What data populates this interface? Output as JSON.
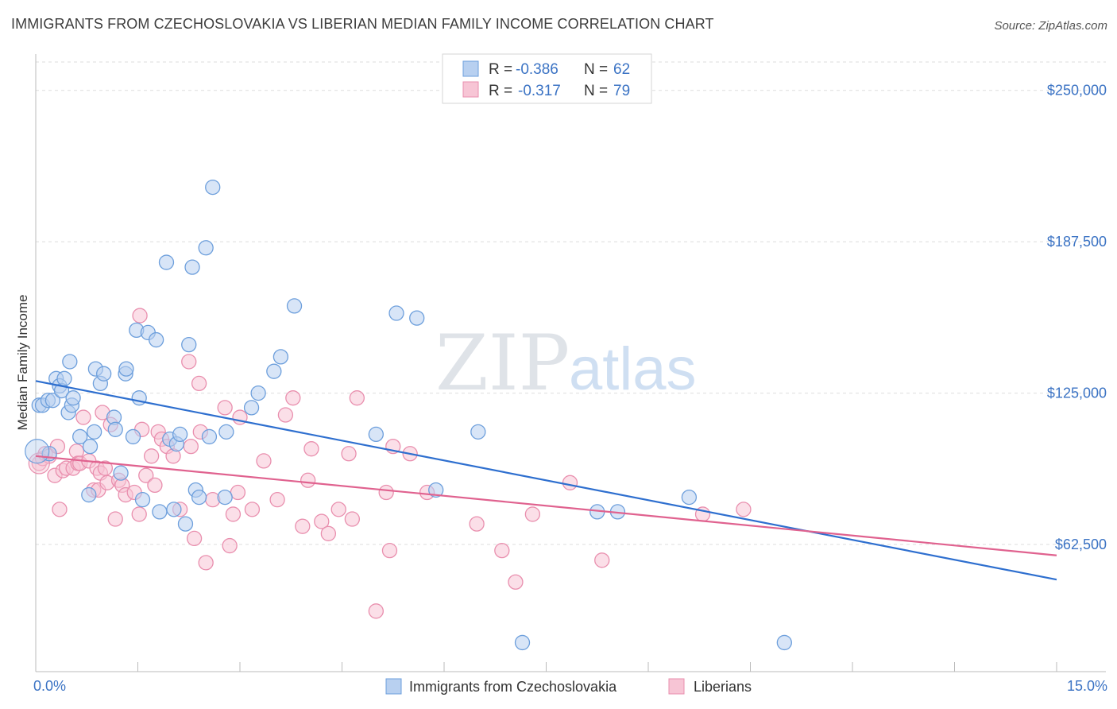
{
  "title": "IMMIGRANTS FROM CZECHOSLOVAKIA VS LIBERIAN MEDIAN FAMILY INCOME CORRELATION CHART",
  "source": "Source: ZipAtlas.com",
  "watermark": {
    "zip": "ZIP",
    "atlas": "atlas"
  },
  "colors": {
    "blue_fill": "#b8d0f0",
    "blue_stroke": "#6d9fdc",
    "blue_line": "#2e6fcf",
    "pink_fill": "#f7c5d5",
    "pink_stroke": "#e98fae",
    "pink_line": "#e0628f",
    "axis_text": "#3b73c4",
    "grid": "#dddddd"
  },
  "legend_top": [
    {
      "r_label": "R =",
      "r_value": "-0.386",
      "n_label": "N =",
      "n_value": "62"
    },
    {
      "r_label": "R =",
      "r_value": "-0.317",
      "n_label": "N =",
      "n_value": "79"
    }
  ],
  "chart_data": {
    "type": "scatter",
    "title": "IMMIGRANTS FROM CZECHOSLOVAKIA VS LIBERIAN MEDIAN FAMILY INCOME CORRELATION CHART",
    "xlabel": "",
    "ylabel": "Median Family Income",
    "xlim": [
      0,
      15
    ],
    "ylim": [
      10000,
      265000
    ],
    "x_tick_labels": [
      "0.0%",
      "15.0%"
    ],
    "y_ticks": [
      62500,
      125000,
      187500,
      250000
    ],
    "y_tick_labels": [
      "$62,500",
      "$125,000",
      "$187,500",
      "$250,000"
    ],
    "grid": true,
    "series": [
      {
        "name": "Immigrants from Czechoslovakia",
        "color": "#6d9fdc",
        "R": -0.386,
        "N": 62,
        "trend": {
          "x": [
            0,
            15
          ],
          "y": [
            130000,
            48000
          ]
        },
        "points": [
          [
            0.05,
            120000
          ],
          [
            0.1,
            120000
          ],
          [
            0.18,
            122000
          ],
          [
            0.25,
            122000
          ],
          [
            0.3,
            131000
          ],
          [
            0.35,
            128000
          ],
          [
            0.38,
            126000
          ],
          [
            0.42,
            131000
          ],
          [
            0.48,
            117000
          ],
          [
            0.53,
            120000
          ],
          [
            0.55,
            123000
          ],
          [
            0.5,
            138000
          ],
          [
            0.65,
            107000
          ],
          [
            0.8,
            103000
          ],
          [
            0.86,
            109000
          ],
          [
            0.88,
            135000
          ],
          [
            0.95,
            129000
          ],
          [
            1.0,
            133000
          ],
          [
            0.78,
            83000
          ],
          [
            1.15,
            115000
          ],
          [
            1.17,
            110000
          ],
          [
            1.25,
            92000
          ],
          [
            1.32,
            133000
          ],
          [
            1.33,
            135000
          ],
          [
            1.43,
            107000
          ],
          [
            1.48,
            151000
          ],
          [
            1.52,
            123000
          ],
          [
            1.57,
            81000
          ],
          [
            1.65,
            150000
          ],
          [
            1.77,
            147000
          ],
          [
            1.82,
            76000
          ],
          [
            1.92,
            179000
          ],
          [
            1.97,
            106000
          ],
          [
            2.03,
            77000
          ],
          [
            2.07,
            104000
          ],
          [
            2.12,
            108000
          ],
          [
            2.2,
            71000
          ],
          [
            2.25,
            145000
          ],
          [
            2.3,
            177000
          ],
          [
            2.35,
            85000
          ],
          [
            2.4,
            82000
          ],
          [
            2.5,
            185000
          ],
          [
            2.55,
            107000
          ],
          [
            2.6,
            210000
          ],
          [
            2.78,
            82000
          ],
          [
            2.8,
            109000
          ],
          [
            3.17,
            119000
          ],
          [
            3.27,
            125000
          ],
          [
            3.5,
            134000
          ],
          [
            3.6,
            140000
          ],
          [
            3.8,
            161000
          ],
          [
            5.0,
            108000
          ],
          [
            5.3,
            158000
          ],
          [
            5.6,
            156000
          ],
          [
            5.88,
            85000
          ],
          [
            6.5,
            109000
          ],
          [
            7.15,
            22000
          ],
          [
            8.25,
            76000
          ],
          [
            8.55,
            76000
          ],
          [
            9.6,
            82000
          ],
          [
            11.0,
            22000
          ],
          [
            0.2,
            100000
          ]
        ]
      },
      {
        "name": "Liberians",
        "color": "#e98fae",
        "R": -0.317,
        "N": 79,
        "trend": {
          "x": [
            0,
            15
          ],
          "y": [
            99000,
            58000
          ]
        },
        "points": [
          [
            0.05,
            96000
          ],
          [
            0.1,
            98000
          ],
          [
            0.14,
            100000
          ],
          [
            0.2,
            99000
          ],
          [
            0.28,
            91000
          ],
          [
            0.32,
            103000
          ],
          [
            0.35,
            77000
          ],
          [
            0.4,
            93000
          ],
          [
            0.45,
            94000
          ],
          [
            0.55,
            94000
          ],
          [
            0.6,
            101000
          ],
          [
            0.62,
            96000
          ],
          [
            0.65,
            96000
          ],
          [
            0.7,
            115000
          ],
          [
            0.78,
            97000
          ],
          [
            0.85,
            85000
          ],
          [
            0.9,
            94000
          ],
          [
            0.92,
            85000
          ],
          [
            0.95,
            92000
          ],
          [
            0.98,
            117000
          ],
          [
            1.02,
            94000
          ],
          [
            1.05,
            88000
          ],
          [
            1.1,
            112000
          ],
          [
            1.17,
            73000
          ],
          [
            1.22,
            89000
          ],
          [
            1.27,
            87000
          ],
          [
            1.32,
            83000
          ],
          [
            1.45,
            84000
          ],
          [
            1.52,
            75000
          ],
          [
            1.53,
            157000
          ],
          [
            1.56,
            110000
          ],
          [
            1.62,
            91000
          ],
          [
            1.7,
            99000
          ],
          [
            1.75,
            87000
          ],
          [
            1.8,
            109000
          ],
          [
            1.85,
            106000
          ],
          [
            1.93,
            103000
          ],
          [
            2.02,
            99000
          ],
          [
            2.12,
            77000
          ],
          [
            2.25,
            138000
          ],
          [
            2.28,
            103000
          ],
          [
            2.33,
            65000
          ],
          [
            2.4,
            129000
          ],
          [
            2.42,
            109000
          ],
          [
            2.5,
            55000
          ],
          [
            2.6,
            81000
          ],
          [
            2.78,
            119000
          ],
          [
            2.85,
            62000
          ],
          [
            2.9,
            75000
          ],
          [
            2.97,
            84000
          ],
          [
            3.0,
            115000
          ],
          [
            3.18,
            77000
          ],
          [
            3.35,
            97000
          ],
          [
            3.55,
            81000
          ],
          [
            3.67,
            116000
          ],
          [
            3.78,
            123000
          ],
          [
            3.92,
            70000
          ],
          [
            4.0,
            89000
          ],
          [
            4.05,
            102000
          ],
          [
            4.2,
            72000
          ],
          [
            4.3,
            67000
          ],
          [
            4.45,
            77000
          ],
          [
            4.6,
            100000
          ],
          [
            4.65,
            73000
          ],
          [
            4.72,
            123000
          ],
          [
            5.0,
            35000
          ],
          [
            5.15,
            84000
          ],
          [
            5.2,
            60000
          ],
          [
            5.25,
            103000
          ],
          [
            5.5,
            100000
          ],
          [
            5.75,
            84000
          ],
          [
            6.48,
            71000
          ],
          [
            6.85,
            60000
          ],
          [
            7.05,
            47000
          ],
          [
            7.3,
            75000
          ],
          [
            7.85,
            88000
          ],
          [
            8.32,
            56000
          ],
          [
            9.8,
            75000
          ],
          [
            10.4,
            77000
          ]
        ]
      }
    ],
    "legend": [
      "Immigrants from Czechoslovakia",
      "Liberians"
    ]
  }
}
